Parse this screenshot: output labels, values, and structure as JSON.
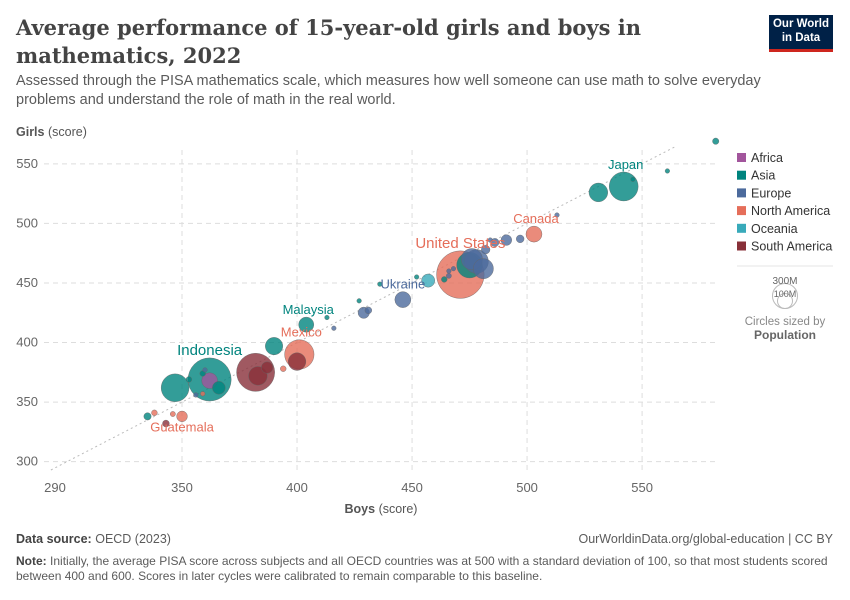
{
  "title": "Average performance of 15-year-old girls and boys in mathematics, 2022",
  "subtitle": "Assessed through the PISA mathematics scale, which measures how well someone can use math to solve everyday problems and understand the role of math in the real world.",
  "logo": {
    "line1": "Our World",
    "line2": "in Data"
  },
  "footer": {
    "source_label": "Data source:",
    "source": "OECD (2023)",
    "url": "OurWorldinData.org/global-education | CC BY",
    "note_label": "Note:",
    "note": "Initially, the average PISA score across subjects and all OECD countries was at 500 with a standard deviation of 100, so that most students scored between 400 and 600. Scores in later cycles were calibrated to remain comparable to this baseline."
  },
  "size_legend": {
    "big": "300M",
    "small": "100M",
    "caption": "Circles sized by",
    "variable": "Population"
  },
  "chart_data": {
    "type": "scatter",
    "xlabel": "Boys",
    "xlabel_unit": "(score)",
    "ylabel": "Girls",
    "ylabel_unit": "(score)",
    "xlim": [
      290,
      583
    ],
    "ylim": [
      293,
      570
    ],
    "xticks": [
      290,
      350,
      400,
      450,
      500,
      550
    ],
    "yticks": [
      300,
      350,
      400,
      450,
      500,
      550
    ],
    "grid": true,
    "reference_line": "y = x",
    "legend_placement": "right",
    "regions": [
      {
        "name": "Africa",
        "color": "#a2559c"
      },
      {
        "name": "Asia",
        "color": "#00847e"
      },
      {
        "name": "Europe",
        "color": "#4c6a9c"
      },
      {
        "name": "North America",
        "color": "#e56e5a"
      },
      {
        "name": "Oceania",
        "color": "#38aaba"
      },
      {
        "name": "South America",
        "color": "#883039"
      }
    ],
    "points": [
      {
        "region": "Asia",
        "boys": 582,
        "girls": 569,
        "pop": 6
      },
      {
        "region": "Asia",
        "boys": 561,
        "girls": 544,
        "pop": 1
      },
      {
        "region": "Asia",
        "boys": 546,
        "girls": 537,
        "pop": 3
      },
      {
        "region": "Asia",
        "boys": 542,
        "girls": 531,
        "pop": 124,
        "label": "Japan"
      },
      {
        "region": "Asia",
        "boys": 531,
        "girls": 526,
        "pop": 52
      },
      {
        "region": "Europe",
        "boys": 513,
        "girls": 507,
        "pop": 1
      },
      {
        "region": "North America",
        "boys": 503,
        "girls": 491,
        "pop": 38,
        "label": "Canada"
      },
      {
        "region": "Europe",
        "boys": 497,
        "girls": 487,
        "pop": 9
      },
      {
        "region": "Europe",
        "boys": 491,
        "girls": 486,
        "pop": 17
      },
      {
        "region": "Europe",
        "boys": 486,
        "girls": 484,
        "pop": 10
      },
      {
        "region": "Europe",
        "boys": 484,
        "girls": 486,
        "pop": 2
      },
      {
        "region": "Europe",
        "boys": 482,
        "girls": 478,
        "pop": 11
      },
      {
        "region": "Europe",
        "boys": 481,
        "girls": 462,
        "pop": 60
      },
      {
        "region": "Europe",
        "boys": 478,
        "girls": 468,
        "pop": 84
      },
      {
        "region": "Asia",
        "boys": 475,
        "girls": 465,
        "pop": 98
      },
      {
        "region": "Europe",
        "boys": 476,
        "girls": 470,
        "pop": 67
      },
      {
        "region": "North America",
        "boys": 471,
        "girls": 457,
        "pop": 335,
        "label": "United States"
      },
      {
        "region": "Europe",
        "boys": 468,
        "girls": 462,
        "pop": 3
      },
      {
        "region": "Europe",
        "boys": 466,
        "girls": 460,
        "pop": 3
      },
      {
        "region": "Europe",
        "boys": 466,
        "girls": 456,
        "pop": 4
      },
      {
        "region": "Asia",
        "boys": 464,
        "girls": 453,
        "pop": 5
      },
      {
        "region": "Oceania",
        "boys": 457,
        "girls": 452,
        "pop": 26
      },
      {
        "region": "Asia",
        "boys": 452,
        "girls": 455,
        "pop": 2
      },
      {
        "region": "Europe",
        "boys": 446,
        "girls": 436,
        "pop": 38,
        "label": "Ukraine"
      },
      {
        "region": "Asia",
        "boys": 436,
        "girls": 449,
        "pop": 1
      },
      {
        "region": "Europe",
        "boys": 431,
        "girls": 427,
        "pop": 7
      },
      {
        "region": "Europe",
        "boys": 429,
        "girls": 425,
        "pop": 19
      },
      {
        "region": "Asia",
        "boys": 427,
        "girls": 435,
        "pop": 2
      },
      {
        "region": "Europe",
        "boys": 416,
        "girls": 412,
        "pop": 1
      },
      {
        "region": "Asia",
        "boys": 413,
        "girls": 421,
        "pop": 2
      },
      {
        "region": "Asia",
        "boys": 404,
        "girls": 415,
        "pop": 34,
        "label": "Malaysia"
      },
      {
        "region": "North America",
        "boys": 401,
        "girls": 390,
        "pop": 128,
        "label": "Mexico"
      },
      {
        "region": "South America",
        "boys": 400,
        "girls": 384,
        "pop": 46
      },
      {
        "region": "Asia",
        "boys": 390,
        "girls": 397,
        "pop": 45
      },
      {
        "region": "North America",
        "boys": 394,
        "girls": 378,
        "pop": 5
      },
      {
        "region": "South America",
        "boys": 387,
        "girls": 379,
        "pop": 20
      },
      {
        "region": "South America",
        "boys": 382,
        "girls": 375,
        "pop": 215
      },
      {
        "region": "South America",
        "boys": 383,
        "girls": 372,
        "pop": 52
      },
      {
        "region": "Asia",
        "boys": 362,
        "girls": 369,
        "pop": 275,
        "label": "Indonesia"
      },
      {
        "region": "Africa",
        "boys": 362,
        "girls": 368,
        "pop": 37
      },
      {
        "region": "Asia",
        "boys": 366,
        "girls": 362,
        "pop": 25
      },
      {
        "region": "Asia",
        "boys": 359,
        "girls": 374,
        "pop": 5
      },
      {
        "region": "Europe",
        "boys": 360,
        "girls": 377,
        "pop": 2
      },
      {
        "region": "Asia",
        "boys": 353,
        "girls": 369,
        "pop": 5
      },
      {
        "region": "Asia",
        "boys": 347,
        "girls": 362,
        "pop": 115
      },
      {
        "region": "Europe",
        "boys": 356,
        "girls": 356,
        "pop": 1
      },
      {
        "region": "North America",
        "boys": 359,
        "girls": 357,
        "pop": 1
      },
      {
        "region": "North America",
        "boys": 350,
        "girls": 338,
        "pop": 17,
        "label": "Guatemala"
      },
      {
        "region": "North America",
        "boys": 346,
        "girls": 340,
        "pop": 4
      },
      {
        "region": "North America",
        "boys": 338,
        "girls": 341,
        "pop": 5
      },
      {
        "region": "Asia",
        "boys": 335,
        "girls": 338,
        "pop": 8
      },
      {
        "region": "South America",
        "boys": 343,
        "girls": 332,
        "pop": 7
      }
    ]
  }
}
